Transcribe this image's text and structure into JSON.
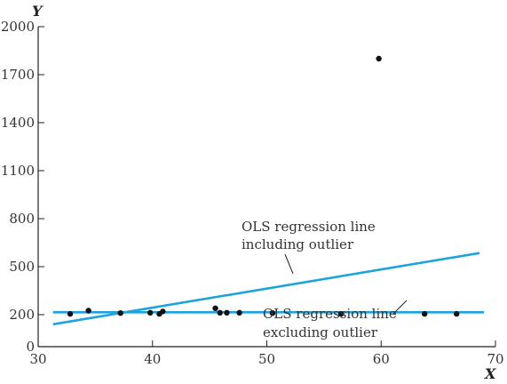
{
  "chart_data": {
    "type": "scatter",
    "xlabel": "X",
    "ylabel": "Y",
    "xlim": [
      30,
      70
    ],
    "ylim": [
      0,
      2000
    ],
    "xticks": [
      30,
      40,
      50,
      60,
      70
    ],
    "yticks": [
      0,
      200,
      500,
      800,
      1100,
      1400,
      1700,
      2000
    ],
    "grid": false,
    "points": [
      {
        "x": 32.8,
        "y": 205
      },
      {
        "x": 34.4,
        "y": 225
      },
      {
        "x": 37.2,
        "y": 210
      },
      {
        "x": 39.8,
        "y": 212
      },
      {
        "x": 40.6,
        "y": 205
      },
      {
        "x": 40.9,
        "y": 220
      },
      {
        "x": 45.5,
        "y": 240
      },
      {
        "x": 45.9,
        "y": 212
      },
      {
        "x": 46.5,
        "y": 212
      },
      {
        "x": 47.6,
        "y": 212
      },
      {
        "x": 50.5,
        "y": 210
      },
      {
        "x": 56.5,
        "y": 205
      },
      {
        "x": 59.8,
        "y": 1800
      },
      {
        "x": 63.8,
        "y": 205
      },
      {
        "x": 66.6,
        "y": 205
      }
    ],
    "lines": [
      {
        "name": "OLS regression line including outlier",
        "x": [
          31.3,
          68.6
        ],
        "y": [
          140,
          585
        ],
        "color": "#1ea3de"
      },
      {
        "name": "OLS regression line excluding outlier",
        "x": [
          31.3,
          69.0
        ],
        "y": [
          215,
          215
        ],
        "color": "#1ea3de"
      }
    ],
    "annotations": [
      {
        "line1": "OLS regression line",
        "line2": "including outlier"
      },
      {
        "line1": "OLS regression line",
        "line2": "excluding outlier"
      }
    ]
  }
}
